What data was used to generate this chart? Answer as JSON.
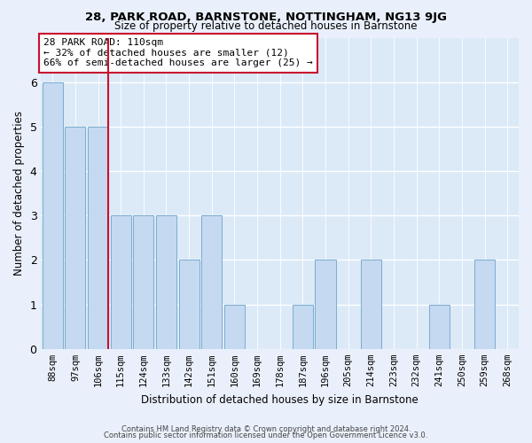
{
  "title1": "28, PARK ROAD, BARNSTONE, NOTTINGHAM, NG13 9JG",
  "title2": "Size of property relative to detached houses in Barnstone",
  "xlabel": "Distribution of detached houses by size in Barnstone",
  "ylabel": "Number of detached properties",
  "categories": [
    "88sqm",
    "97sqm",
    "106sqm",
    "115sqm",
    "124sqm",
    "133sqm",
    "142sqm",
    "151sqm",
    "160sqm",
    "169sqm",
    "178sqm",
    "187sqm",
    "196sqm",
    "205sqm",
    "214sqm",
    "223sqm",
    "232sqm",
    "241sqm",
    "250sqm",
    "259sqm",
    "268sqm"
  ],
  "values": [
    6,
    5,
    5,
    3,
    3,
    3,
    2,
    3,
    1,
    0,
    0,
    1,
    2,
    0,
    2,
    0,
    0,
    1,
    0,
    2,
    0
  ],
  "highlight_index": 2,
  "highlight_color": "#c8102e",
  "bar_color": "#c5d9f1",
  "bar_edge_color": "#7aadcf",
  "ylim": [
    0,
    7
  ],
  "yticks": [
    0,
    1,
    2,
    3,
    4,
    5,
    6
  ],
  "annotation_line1": "28 PARK ROAD: 110sqm",
  "annotation_line2": "← 32% of detached houses are smaller (12)",
  "annotation_line3": "66% of semi-detached houses are larger (25) →",
  "footer1": "Contains HM Land Registry data © Crown copyright and database right 2024.",
  "footer2": "Contains public sector information licensed under the Open Government Licence v3.0.",
  "bg_color": "#eaf0fb",
  "plot_bg_color": "#dce9f7"
}
